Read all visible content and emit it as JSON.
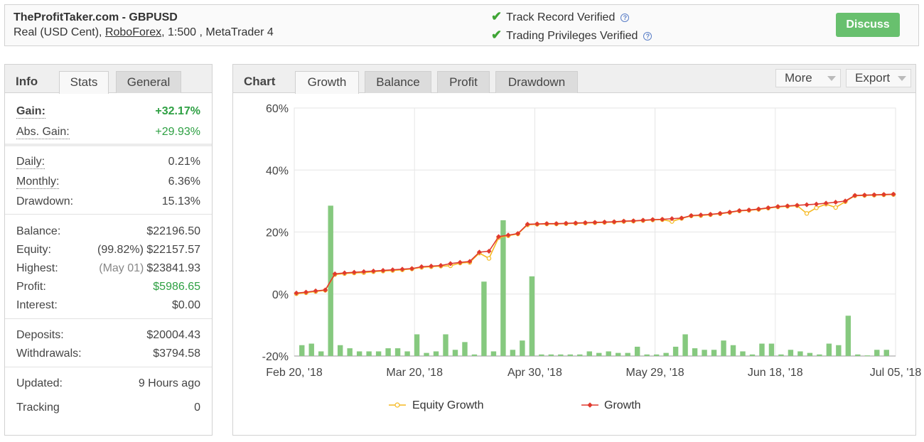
{
  "header": {
    "title": "TheProfitTaker.com - GBPUSD",
    "account_type": "Real (USD Cent),",
    "broker": "RoboForex",
    "leverage_platform": ", 1:500 , MetaTrader 4",
    "verifications": [
      "Track Record Verified",
      "Trading Privileges Verified"
    ],
    "help_glyph": "?",
    "discuss_label": "Discuss"
  },
  "info_panel": {
    "tabs": [
      "Info",
      "Stats",
      "General"
    ],
    "stats": {
      "gain": {
        "label": "Gain:",
        "value": "+32.17%"
      },
      "abs_gain": {
        "label": "Abs. Gain:",
        "value": "+29.93%"
      },
      "daily": {
        "label": "Daily:",
        "value": "0.21%"
      },
      "monthly": {
        "label": "Monthly:",
        "value": "6.36%"
      },
      "drawdown": {
        "label": "Drawdown:",
        "value": "15.13%"
      },
      "balance": {
        "label": "Balance:",
        "value": "$22196.50"
      },
      "equity": {
        "label": "Equity:",
        "note": "(99.82%)",
        "value": "$22157.57"
      },
      "highest": {
        "label": "Highest:",
        "note": "(May 01)",
        "value": "$23841.93"
      },
      "profit": {
        "label": "Profit:",
        "value": "$5986.65"
      },
      "interest": {
        "label": "Interest:",
        "value": "$0.00"
      },
      "deposits": {
        "label": "Deposits:",
        "value": "$20004.43"
      },
      "withdrawals": {
        "label": "Withdrawals:",
        "value": "$3794.58"
      },
      "updated": {
        "label": "Updated:",
        "value": "9 Hours ago"
      },
      "tracking": {
        "label": "Tracking",
        "value": "0"
      }
    }
  },
  "chart_panel": {
    "tabs": [
      "Chart",
      "Growth",
      "Balance",
      "Profit",
      "Drawdown"
    ],
    "more_label": "More",
    "export_label": "Export"
  },
  "colors": {
    "growth": "#e03a2f",
    "equity": "#f5b921",
    "bars": "#86c97f",
    "positive": "#2ea043",
    "discuss": "#68c06e"
  },
  "chart_data": {
    "type": "line",
    "ylim": [
      -20,
      60
    ],
    "y_ticks": [
      "60%",
      "40%",
      "20%",
      "0%",
      "-20%"
    ],
    "x_ticks": [
      "Feb 20, '18",
      "Mar 20, '18",
      "Apr 30, '18",
      "May 29, '18",
      "Jun 18, '18",
      "Jul 05, '18"
    ],
    "legend": [
      "Equity Growth",
      "Growth"
    ],
    "growth": [
      0.3,
      0.6,
      1.0,
      1.3,
      6.5,
      6.8,
      7.0,
      7.2,
      7.4,
      7.6,
      7.8,
      8.0,
      8.2,
      8.8,
      9.0,
      9.2,
      9.8,
      10.2,
      10.5,
      13.5,
      13.8,
      18.5,
      19.0,
      19.5,
      22.5,
      22.6,
      22.7,
      22.7,
      22.8,
      22.9,
      23.0,
      23.1,
      23.2,
      23.3,
      23.5,
      23.6,
      23.8,
      24.0,
      24.1,
      24.3,
      24.5,
      25.3,
      25.5,
      25.7,
      26.0,
      26.4,
      26.9,
      27.1,
      27.4,
      27.8,
      28.2,
      28.4,
      28.6,
      28.8,
      29.0,
      29.3,
      29.6,
      30.0,
      31.8,
      31.9,
      32.0,
      32.1,
      32.2
    ],
    "equity_growth": [
      0.1,
      0.4,
      0.8,
      1.2,
      6.3,
      6.6,
      6.8,
      6.9,
      7.2,
      7.4,
      7.6,
      7.8,
      8.1,
      8.6,
      8.8,
      9.0,
      9.1,
      10.0,
      10.2,
      13.2,
      11.5,
      18.2,
      18.8,
      19.4,
      22.3,
      22.5,
      22.6,
      22.6,
      22.7,
      22.8,
      22.9,
      23.0,
      23.1,
      23.2,
      23.4,
      23.5,
      23.7,
      23.9,
      24.0,
      23.4,
      24.4,
      25.2,
      25.3,
      25.6,
      25.9,
      26.3,
      26.8,
      27.0,
      27.3,
      27.7,
      28.1,
      28.3,
      28.5,
      26.0,
      27.8,
      29.0,
      27.9,
      29.8,
      31.7,
      31.8,
      31.9,
      32.0,
      32.1
    ],
    "bars": [
      -16.5,
      -16.0,
      -18.5,
      28.5,
      -16.5,
      -17.5,
      -18.5,
      -18.5,
      -18.5,
      -17.5,
      -17.5,
      -18.5,
      -13.0,
      -19.0,
      -18.5,
      -13.0,
      -18.0,
      -15.5,
      -19.5,
      4.0,
      -18.5,
      23.8,
      -18.0,
      -15.0,
      5.7,
      -19.5,
      -19.5,
      -19.5,
      -19.5,
      -19.5,
      -18.5,
      -19.0,
      -18.5,
      -19.0,
      -19.0,
      -17.0,
      -19.5,
      -19.5,
      -19.0,
      -17.0,
      -13.0,
      -17.5,
      -18.0,
      -18.0,
      -15.0,
      -16.5,
      -18.5,
      -19.5,
      -16.0,
      -16.0,
      -19.5,
      -18.0,
      -18.5,
      -19.0,
      -19.5,
      -16.0,
      -16.5,
      -7.0,
      -19.5,
      -19.8,
      -18.0,
      -18.0
    ]
  }
}
